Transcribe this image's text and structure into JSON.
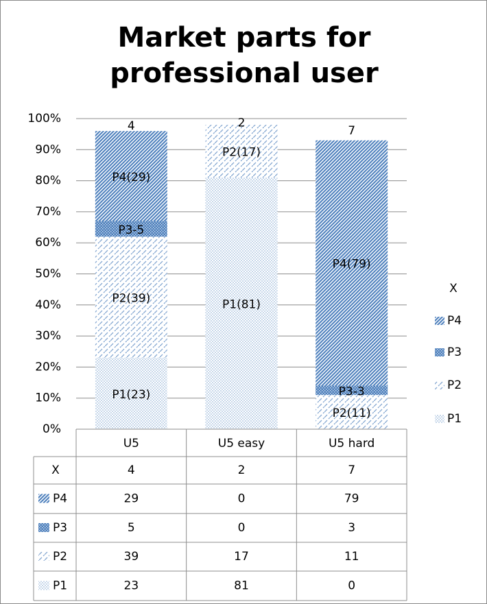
{
  "chart_data": {
    "type": "stacked_bar",
    "title": "Market parts for professional user",
    "categories": [
      "U5",
      "U5 easy",
      "U5 hard"
    ],
    "series": [
      {
        "name": "P1",
        "color": "#4f81bd",
        "values": [
          23,
          81,
          0
        ],
        "value_labels": [
          "P1(23)",
          "P1(81)",
          null
        ]
      },
      {
        "name": "P2",
        "color": "#4f81bd",
        "values": [
          39,
          17,
          11
        ],
        "value_labels": [
          "P2(39)",
          "P2(17)",
          "P2(11)"
        ]
      },
      {
        "name": "P3",
        "color": "#4f81bd",
        "values": [
          5,
          0,
          3
        ],
        "value_labels": [
          "P3-5",
          null,
          "P3-3"
        ]
      },
      {
        "name": "P4",
        "color": "#4f81bd",
        "values": [
          29,
          0,
          79
        ],
        "value_labels": [
          "P4(29)",
          null,
          "P4(79)"
        ]
      },
      {
        "name": "X",
        "color": "none",
        "values": [
          4,
          2,
          7
        ]
      }
    ],
    "ylim": [
      0,
      100
    ],
    "yticks": [
      {
        "value": 0,
        "label": "0%"
      },
      {
        "value": 10,
        "label": "10%"
      },
      {
        "value": 20,
        "label": "20%"
      },
      {
        "value": 30,
        "label": "30%"
      },
      {
        "value": 40,
        "label": "40%"
      },
      {
        "value": 50,
        "label": "50%"
      },
      {
        "value": 60,
        "label": "60%"
      },
      {
        "value": 70,
        "label": "70%"
      },
      {
        "value": 80,
        "label": "80%"
      },
      {
        "value": 90,
        "label": "90%"
      },
      {
        "value": 100,
        "label": "100%"
      }
    ],
    "grid": true,
    "legend": "right"
  }
}
